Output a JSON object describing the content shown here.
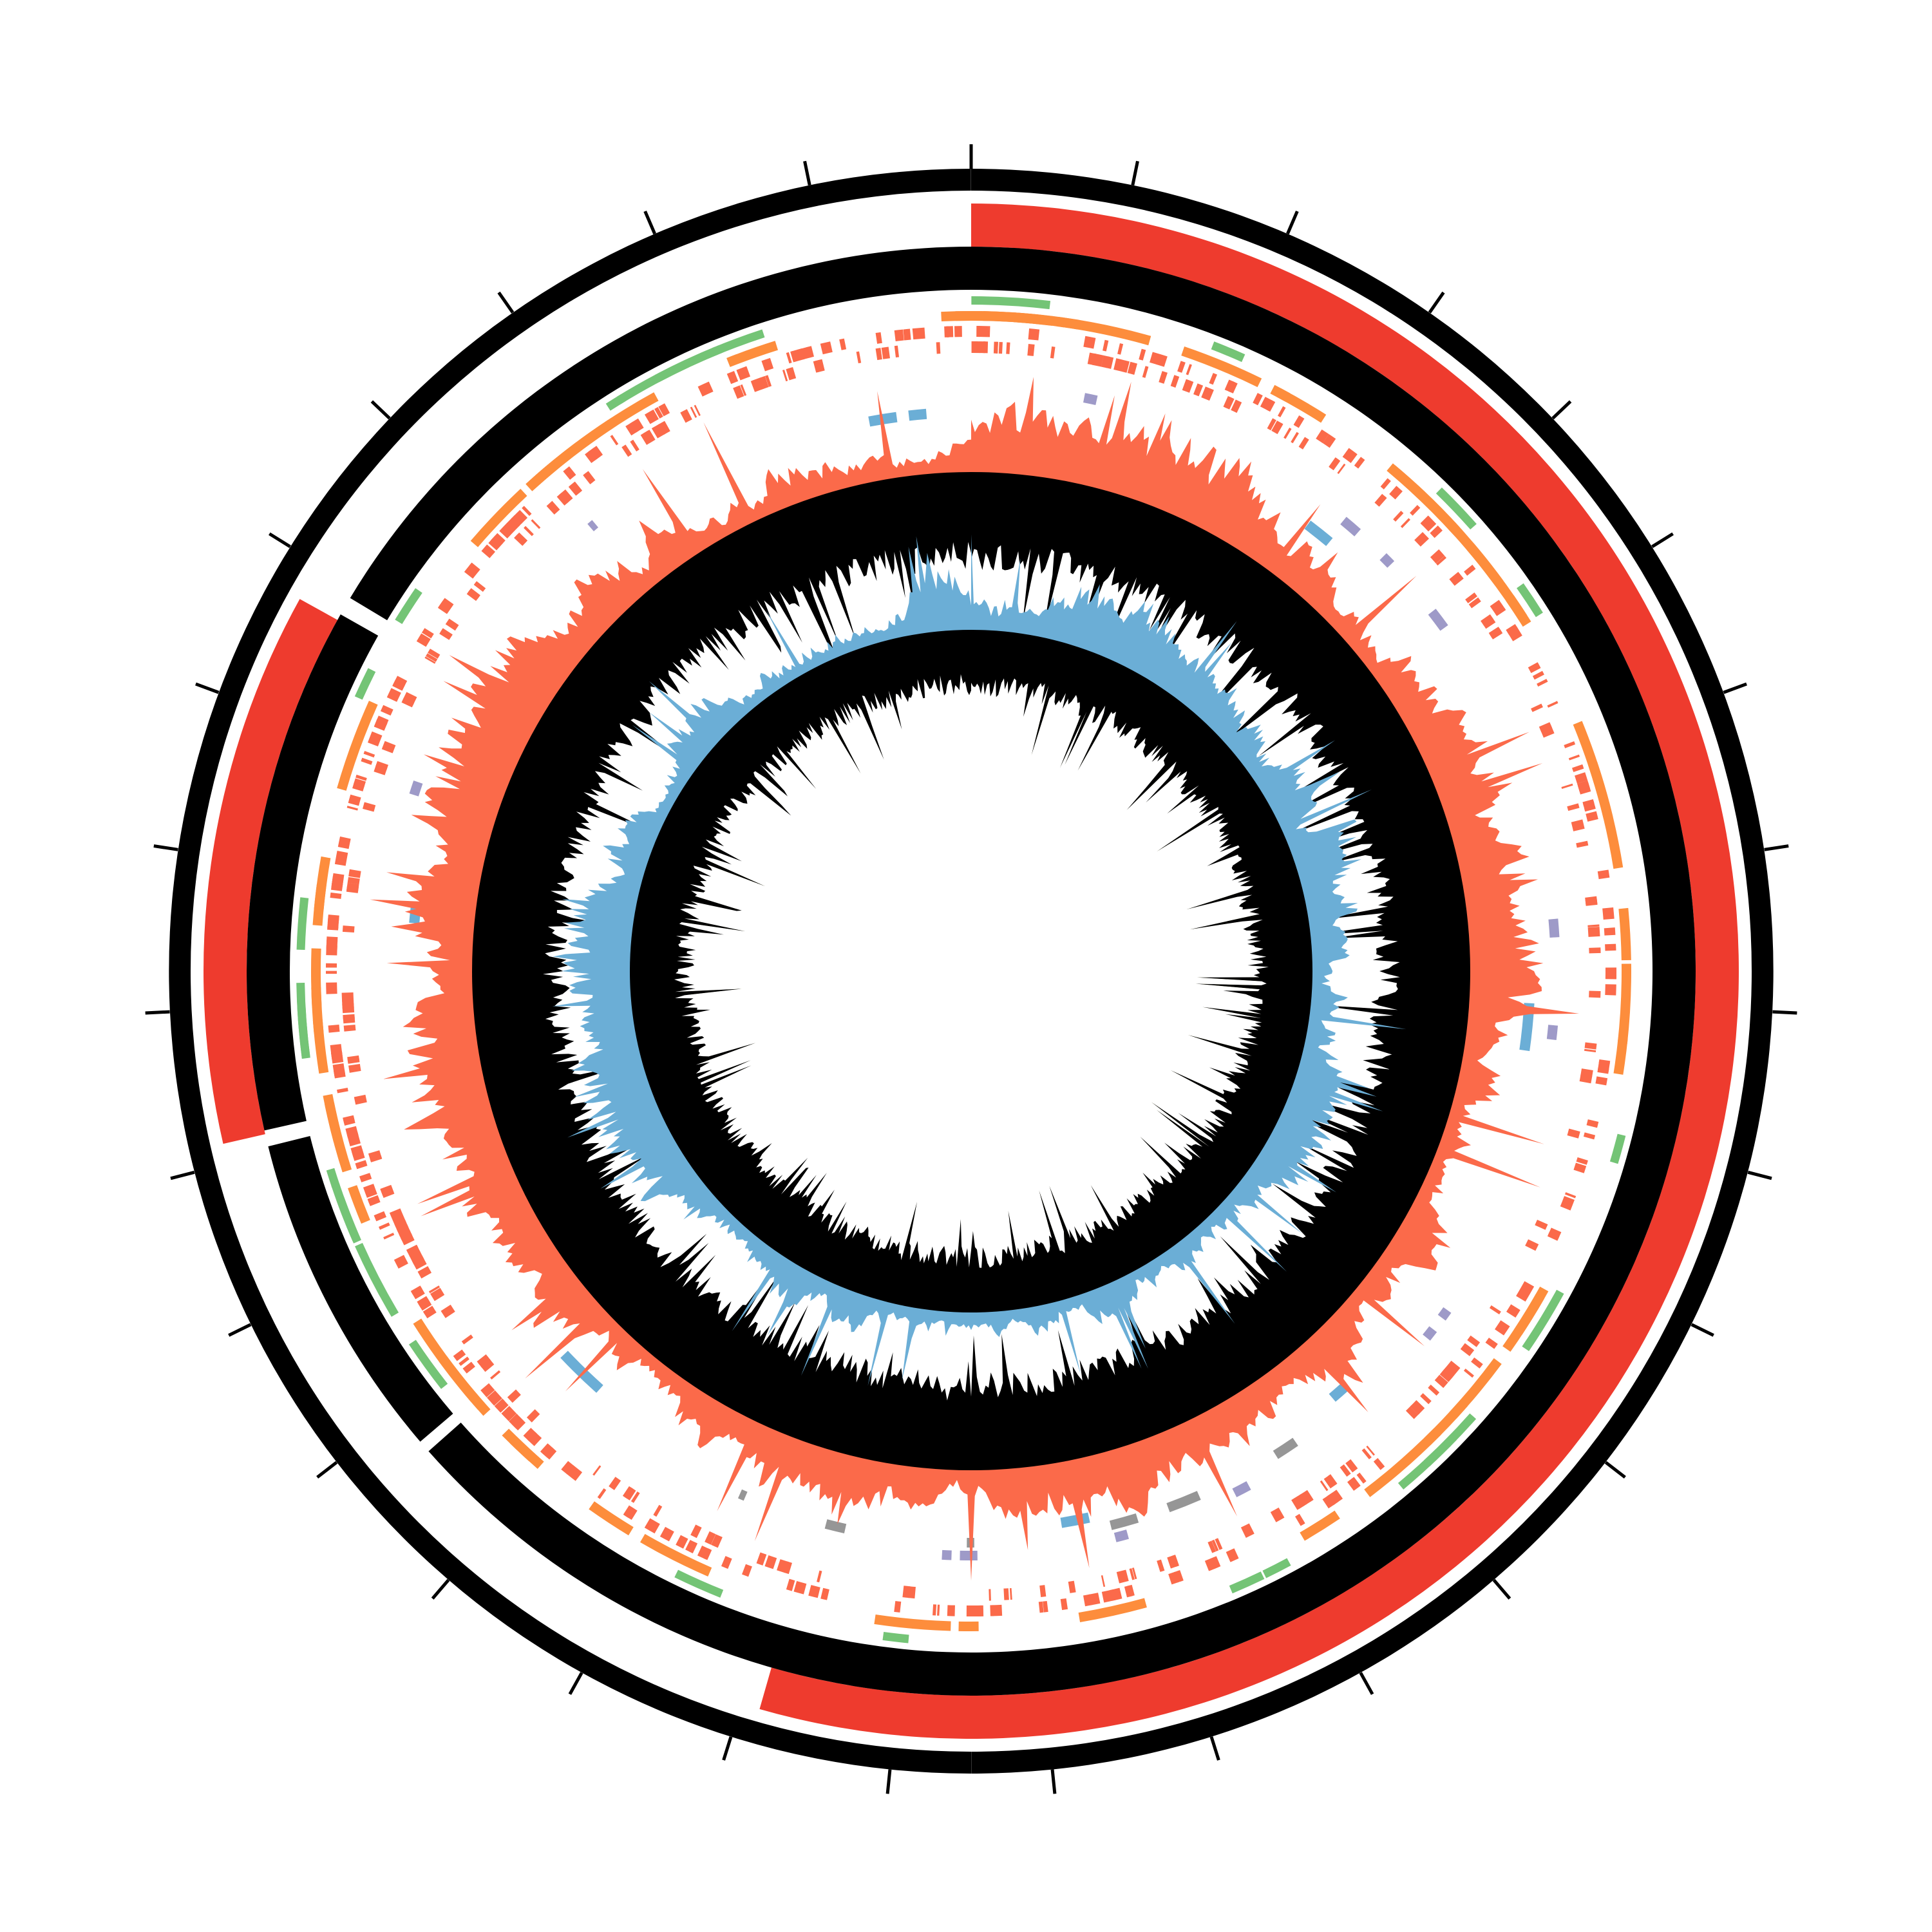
{
  "chart_data": {
    "type": "circos",
    "tick_count": 31,
    "ideogram_segments_deg": [
      [
        0,
        196
      ],
      [
        257,
        299
      ]
    ],
    "colors": {
      "outer_ring": "#000000",
      "ideogram": "#ee3b2e",
      "karyotype_ring": "#000000",
      "feature_green": "#74c476",
      "feature_orange": "#fd8d3c",
      "feature_red": "#fb6a4a",
      "feature_purple": "#9e9ac8",
      "feature_gray": "#969696",
      "feature_blue": "#6baed6",
      "hist_coral": "#fb6a4a",
      "hist_orange_spikes": "#fd8d3c",
      "hist_blue": "#6baed6",
      "hist_yellow_spikes": "#ffff33"
    }
  }
}
